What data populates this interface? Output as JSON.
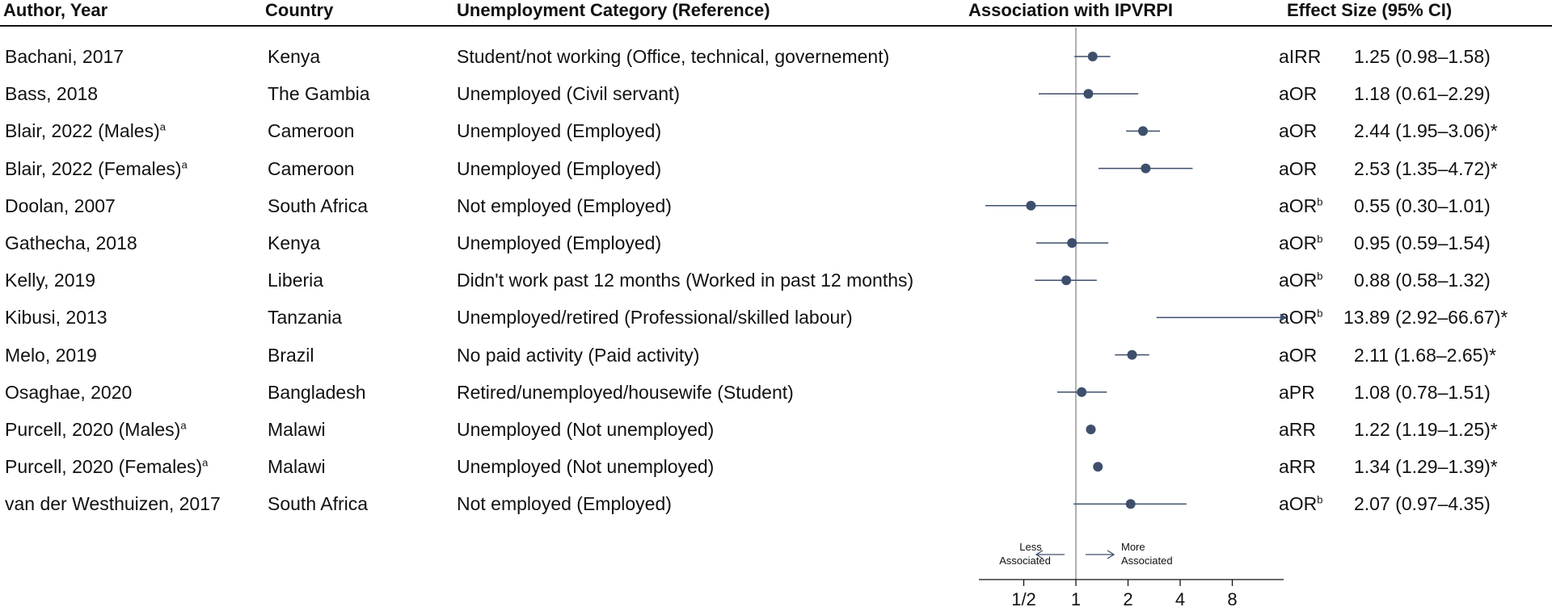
{
  "headers": {
    "author": "Author, Year",
    "country": "Country",
    "category": "Unemployment Category (Reference)",
    "association": "Association with IPVRPI",
    "effect": "Effect Size (95% CI)"
  },
  "rows": [
    {
      "author": "Bachani, 2017",
      "sup": "",
      "country": "Kenya",
      "category": "Student/not working (Office, technical, governement)",
      "measure": "aIRR",
      "measure_sup": "",
      "effect_text": "1.25 (0.98–1.58)"
    },
    {
      "author": "Bass, 2018",
      "sup": "",
      "country": "The Gambia",
      "category": "Unemployed (Civil servant)",
      "measure": "aOR",
      "measure_sup": "",
      "effect_text": "1.18 (0.61–2.29)"
    },
    {
      "author": "Blair, 2022 (Males)",
      "sup": "a",
      "country": "Cameroon",
      "category": "Unemployed (Employed)",
      "measure": "aOR",
      "measure_sup": "",
      "effect_text": "2.44 (1.95–3.06)*"
    },
    {
      "author": "Blair, 2022 (Females)",
      "sup": "a",
      "country": "Cameroon",
      "category": "Unemployed (Employed)",
      "measure": "aOR",
      "measure_sup": "",
      "effect_text": "2.53 (1.35–4.72)*"
    },
    {
      "author": "Doolan, 2007",
      "sup": "",
      "country": "South Africa",
      "category": "Not employed (Employed)",
      "measure": "aOR",
      "measure_sup": "b",
      "effect_text": "0.55 (0.30–1.01)"
    },
    {
      "author": "Gathecha, 2018",
      "sup": "",
      "country": "Kenya",
      "category": "Unemployed (Employed)",
      "measure": "aOR",
      "measure_sup": "b",
      "effect_text": "0.95 (0.59–1.54)"
    },
    {
      "author": "Kelly, 2019",
      "sup": "",
      "country": "Liberia",
      "category": "Didn't work past 12 months (Worked in past 12 months)",
      "measure": "aOR",
      "measure_sup": "b",
      "effect_text": "0.88 (0.58–1.32)"
    },
    {
      "author": "Kibusi, 2013",
      "sup": "",
      "country": "Tanzania",
      "category": "Unemployed/retired (Professional/skilled labour)",
      "measure": "aOR",
      "measure_sup": "b",
      "effect_text": "13.89 (2.92–66.67)*"
    },
    {
      "author": "Melo, 2019",
      "sup": "",
      "country": "Brazil",
      "category": "No paid activity (Paid activity)",
      "measure": "aOR",
      "measure_sup": "",
      "effect_text": "2.11 (1.68–2.65)*"
    },
    {
      "author": "Osaghae, 2020",
      "sup": "",
      "country": "Bangladesh",
      "category": "Retired/unemployed/housewife (Student)",
      "measure": "aPR",
      "measure_sup": "",
      "effect_text": "1.08 (0.78–1.51)"
    },
    {
      "author": "Purcell, 2020 (Males)",
      "sup": "a",
      "country": "Malawi",
      "category": "Unemployed (Not unemployed)",
      "measure": "aRR",
      "measure_sup": "",
      "effect_text": "1.22 (1.19–1.25)*"
    },
    {
      "author": "Purcell, 2020 (Females)",
      "sup": "a",
      "country": "Malawi",
      "category": "Unemployed (Not unemployed)",
      "measure": "aRR",
      "measure_sup": "",
      "effect_text": "1.34 (1.29–1.39)*"
    },
    {
      "author": "van der Westhuizen, 2017",
      "sup": "",
      "country": "South Africa",
      "category": "Not employed (Employed)",
      "measure": "aOR",
      "measure_sup": "b",
      "effect_text": "2.07 (0.97–4.35)"
    }
  ],
  "chart_data": {
    "type": "scatter",
    "scale": "log2",
    "xlim": [
      0.25,
      20
    ],
    "reference_value": 1,
    "ticks": [
      0.5,
      1,
      2,
      4,
      8
    ],
    "tick_labels": [
      "1/2",
      "1",
      "2",
      "4",
      "8"
    ],
    "direction_labels": {
      "left_line1": "Less",
      "left_line2": "Associated",
      "right_line1": "More",
      "right_line2": "Associated"
    },
    "points": [
      {
        "est": 1.25,
        "lo": 0.98,
        "hi": 1.58
      },
      {
        "est": 1.18,
        "lo": 0.61,
        "hi": 2.29
      },
      {
        "est": 2.44,
        "lo": 1.95,
        "hi": 3.06
      },
      {
        "est": 2.53,
        "lo": 1.35,
        "hi": 4.72
      },
      {
        "est": 0.55,
        "lo": 0.3,
        "hi": 1.01
      },
      {
        "est": 0.95,
        "lo": 0.59,
        "hi": 1.54
      },
      {
        "est": 0.88,
        "lo": 0.58,
        "hi": 1.32
      },
      {
        "est": 13.89,
        "lo": 2.92,
        "hi": 66.67,
        "clipped": true
      },
      {
        "est": 2.11,
        "lo": 1.68,
        "hi": 2.65
      },
      {
        "est": 1.08,
        "lo": 0.78,
        "hi": 1.51
      },
      {
        "est": 1.22,
        "lo": 1.19,
        "hi": 1.25
      },
      {
        "est": 1.34,
        "lo": 1.29,
        "hi": 1.39
      },
      {
        "est": 2.07,
        "lo": 0.97,
        "hi": 4.35
      }
    ],
    "colors": {
      "marker": "#3d4f6c",
      "line": "#3d4f6c",
      "refline": "#888888",
      "axis": "#111111"
    }
  }
}
